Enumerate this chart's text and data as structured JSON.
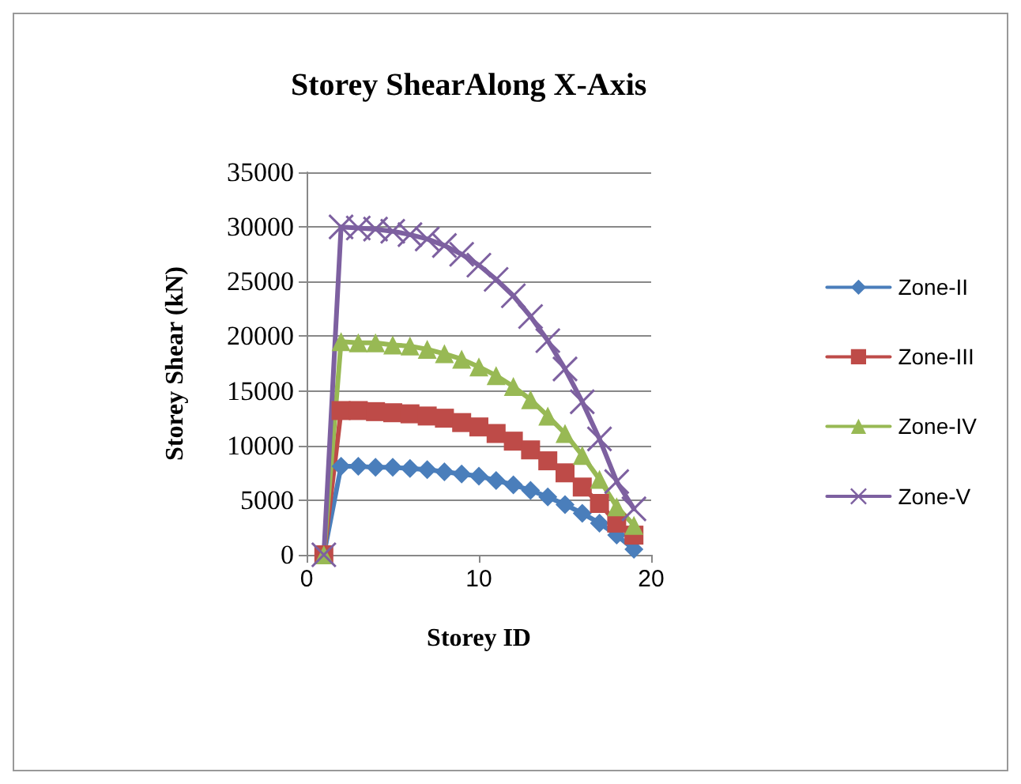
{
  "chart_data": {
    "type": "line",
    "title": "Storey ShearAlong X-Axis",
    "xlabel": "Storey ID",
    "ylabel": "Storey Shear (kN)",
    "x": [
      1,
      2,
      3,
      4,
      5,
      6,
      7,
      8,
      9,
      10,
      11,
      12,
      13,
      14,
      15,
      16,
      17,
      18,
      19
    ],
    "xlim": [
      0,
      20
    ],
    "xticks": [
      0,
      10,
      20
    ],
    "ylim": [
      0,
      35000
    ],
    "yticks": [
      0,
      5000,
      10000,
      15000,
      20000,
      25000,
      30000,
      35000
    ],
    "grid": "y",
    "legend": "right",
    "series": [
      {
        "name": "Zone-II",
        "color": "#4a7ebb",
        "marker": "diamond",
        "values": [
          0,
          8100,
          8100,
          8000,
          8000,
          7900,
          7800,
          7600,
          7400,
          7200,
          6800,
          6400,
          5900,
          5300,
          4600,
          3800,
          2900,
          1800,
          500
        ]
      },
      {
        "name": "Zone-III",
        "color": "#be4b48",
        "marker": "square",
        "values": [
          0,
          13200,
          13200,
          13100,
          13000,
          12900,
          12700,
          12500,
          12100,
          11700,
          11100,
          10400,
          9600,
          8600,
          7500,
          6200,
          4700,
          2900,
          1800
        ]
      },
      {
        "name": "Zone-IV",
        "color": "#98b954",
        "marker": "triangle",
        "values": [
          0,
          19500,
          19400,
          19400,
          19200,
          19100,
          18800,
          18400,
          17900,
          17200,
          16400,
          15400,
          14200,
          12700,
          11100,
          9100,
          6900,
          4400,
          2700
        ]
      },
      {
        "name": "Zone-V",
        "color": "#7d60a0",
        "marker": "cross",
        "values": [
          0,
          30000,
          29900,
          29800,
          29600,
          29300,
          28900,
          28300,
          27500,
          26500,
          25200,
          23700,
          21800,
          19600,
          17000,
          14000,
          10600,
          6700,
          4200
        ]
      }
    ]
  }
}
